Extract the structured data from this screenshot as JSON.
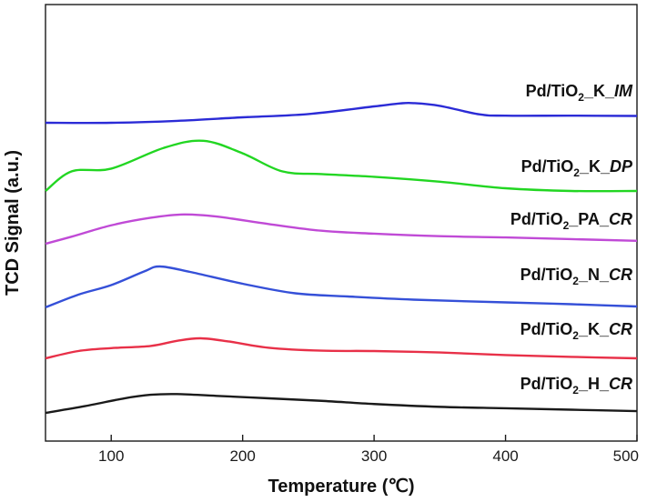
{
  "chart_data": {
    "type": "line",
    "xlabel": "Temperature (℃)",
    "ylabel": "TCD Signal (a.u.)",
    "xlim": [
      50,
      500
    ],
    "x_ticks": [
      100,
      200,
      300,
      400,
      500
    ],
    "y_ticks": "none",
    "legend": "labels placed on the right, above each curve",
    "series": [
      {
        "name": "Pd/TiO2_K_IM",
        "label": {
          "base": "Pd/TiO",
          "sub": "2",
          "mid": "_K_",
          "italic": "IM"
        },
        "color": "#2b2bd6",
        "points": [
          [
            50,
            0.0
          ],
          [
            100,
            0.0
          ],
          [
            150,
            0.07
          ],
          [
            200,
            0.2
          ],
          [
            250,
            0.32
          ],
          [
            300,
            0.6
          ],
          [
            320,
            0.71
          ],
          [
            330,
            0.72
          ],
          [
            350,
            0.62
          ],
          [
            380,
            0.31
          ],
          [
            400,
            0.26
          ],
          [
            450,
            0.26
          ],
          [
            500,
            0.25
          ]
        ]
      },
      {
        "name": "Pd/TiO2_K_DP",
        "label": {
          "base": "Pd/TiO",
          "sub": "2",
          "mid": "_K_",
          "italic": "DP"
        },
        "color": "#22d622",
        "points": [
          [
            50,
            0.0
          ],
          [
            70,
            0.36
          ],
          [
            100,
            0.41
          ],
          [
            140,
            0.79
          ],
          [
            170,
            0.92
          ],
          [
            200,
            0.69
          ],
          [
            230,
            0.36
          ],
          [
            260,
            0.31
          ],
          [
            300,
            0.26
          ],
          [
            350,
            0.17
          ],
          [
            400,
            0.05
          ],
          [
            450,
            0.0
          ],
          [
            500,
            0.0
          ]
        ]
      },
      {
        "name": "Pd/TiO2_PA_CR",
        "label": {
          "base": "Pd/TiO",
          "sub": "2",
          "mid": "_PA_",
          "italic": "CR"
        },
        "color": "#c04ad6",
        "points": [
          [
            50,
            0.0
          ],
          [
            70,
            0.17
          ],
          [
            100,
            0.44
          ],
          [
            130,
            0.62
          ],
          [
            155,
            0.7
          ],
          [
            180,
            0.65
          ],
          [
            220,
            0.47
          ],
          [
            260,
            0.31
          ],
          [
            300,
            0.24
          ],
          [
            350,
            0.18
          ],
          [
            400,
            0.15
          ],
          [
            450,
            0.11
          ],
          [
            500,
            0.07
          ]
        ]
      },
      {
        "name": "Pd/TiO2_N_CR",
        "label": {
          "base": "Pd/TiO",
          "sub": "2",
          "mid": "_N_",
          "italic": "CR"
        },
        "color": "#3550d8",
        "points": [
          [
            50,
            0.0
          ],
          [
            75,
            0.28
          ],
          [
            100,
            0.49
          ],
          [
            125,
            0.79
          ],
          [
            137,
            0.9
          ],
          [
            160,
            0.78
          ],
          [
            200,
            0.52
          ],
          [
            240,
            0.31
          ],
          [
            280,
            0.24
          ],
          [
            330,
            0.17
          ],
          [
            400,
            0.11
          ],
          [
            450,
            0.07
          ],
          [
            500,
            0.02
          ]
        ]
      },
      {
        "name": "Pd/TiO2_K_CR",
        "label": {
          "base": "Pd/TiO",
          "sub": "2",
          "mid": "_K_",
          "italic": "CR"
        },
        "color": "#e83048",
        "points": [
          [
            50,
            0.0
          ],
          [
            75,
            0.2
          ],
          [
            100,
            0.28
          ],
          [
            130,
            0.34
          ],
          [
            150,
            0.48
          ],
          [
            168,
            0.55
          ],
          [
            190,
            0.46
          ],
          [
            220,
            0.29
          ],
          [
            260,
            0.21
          ],
          [
            300,
            0.2
          ],
          [
            350,
            0.16
          ],
          [
            400,
            0.09
          ],
          [
            450,
            0.04
          ],
          [
            500,
            0.0
          ]
        ]
      },
      {
        "name": "Pd/TiO2_H_CR",
        "label": {
          "base": "Pd/TiO",
          "sub": "2",
          "mid": "_H_",
          "italic": "CR"
        },
        "color": "#1a1a1a",
        "points": [
          [
            50,
            0.0
          ],
          [
            80,
            0.19
          ],
          [
            110,
            0.41
          ],
          [
            130,
            0.51
          ],
          [
            150,
            0.53
          ],
          [
            180,
            0.48
          ],
          [
            220,
            0.41
          ],
          [
            260,
            0.34
          ],
          [
            300,
            0.25
          ],
          [
            350,
            0.17
          ],
          [
            400,
            0.13
          ],
          [
            450,
            0.09
          ],
          [
            500,
            0.05
          ]
        ]
      }
    ]
  }
}
